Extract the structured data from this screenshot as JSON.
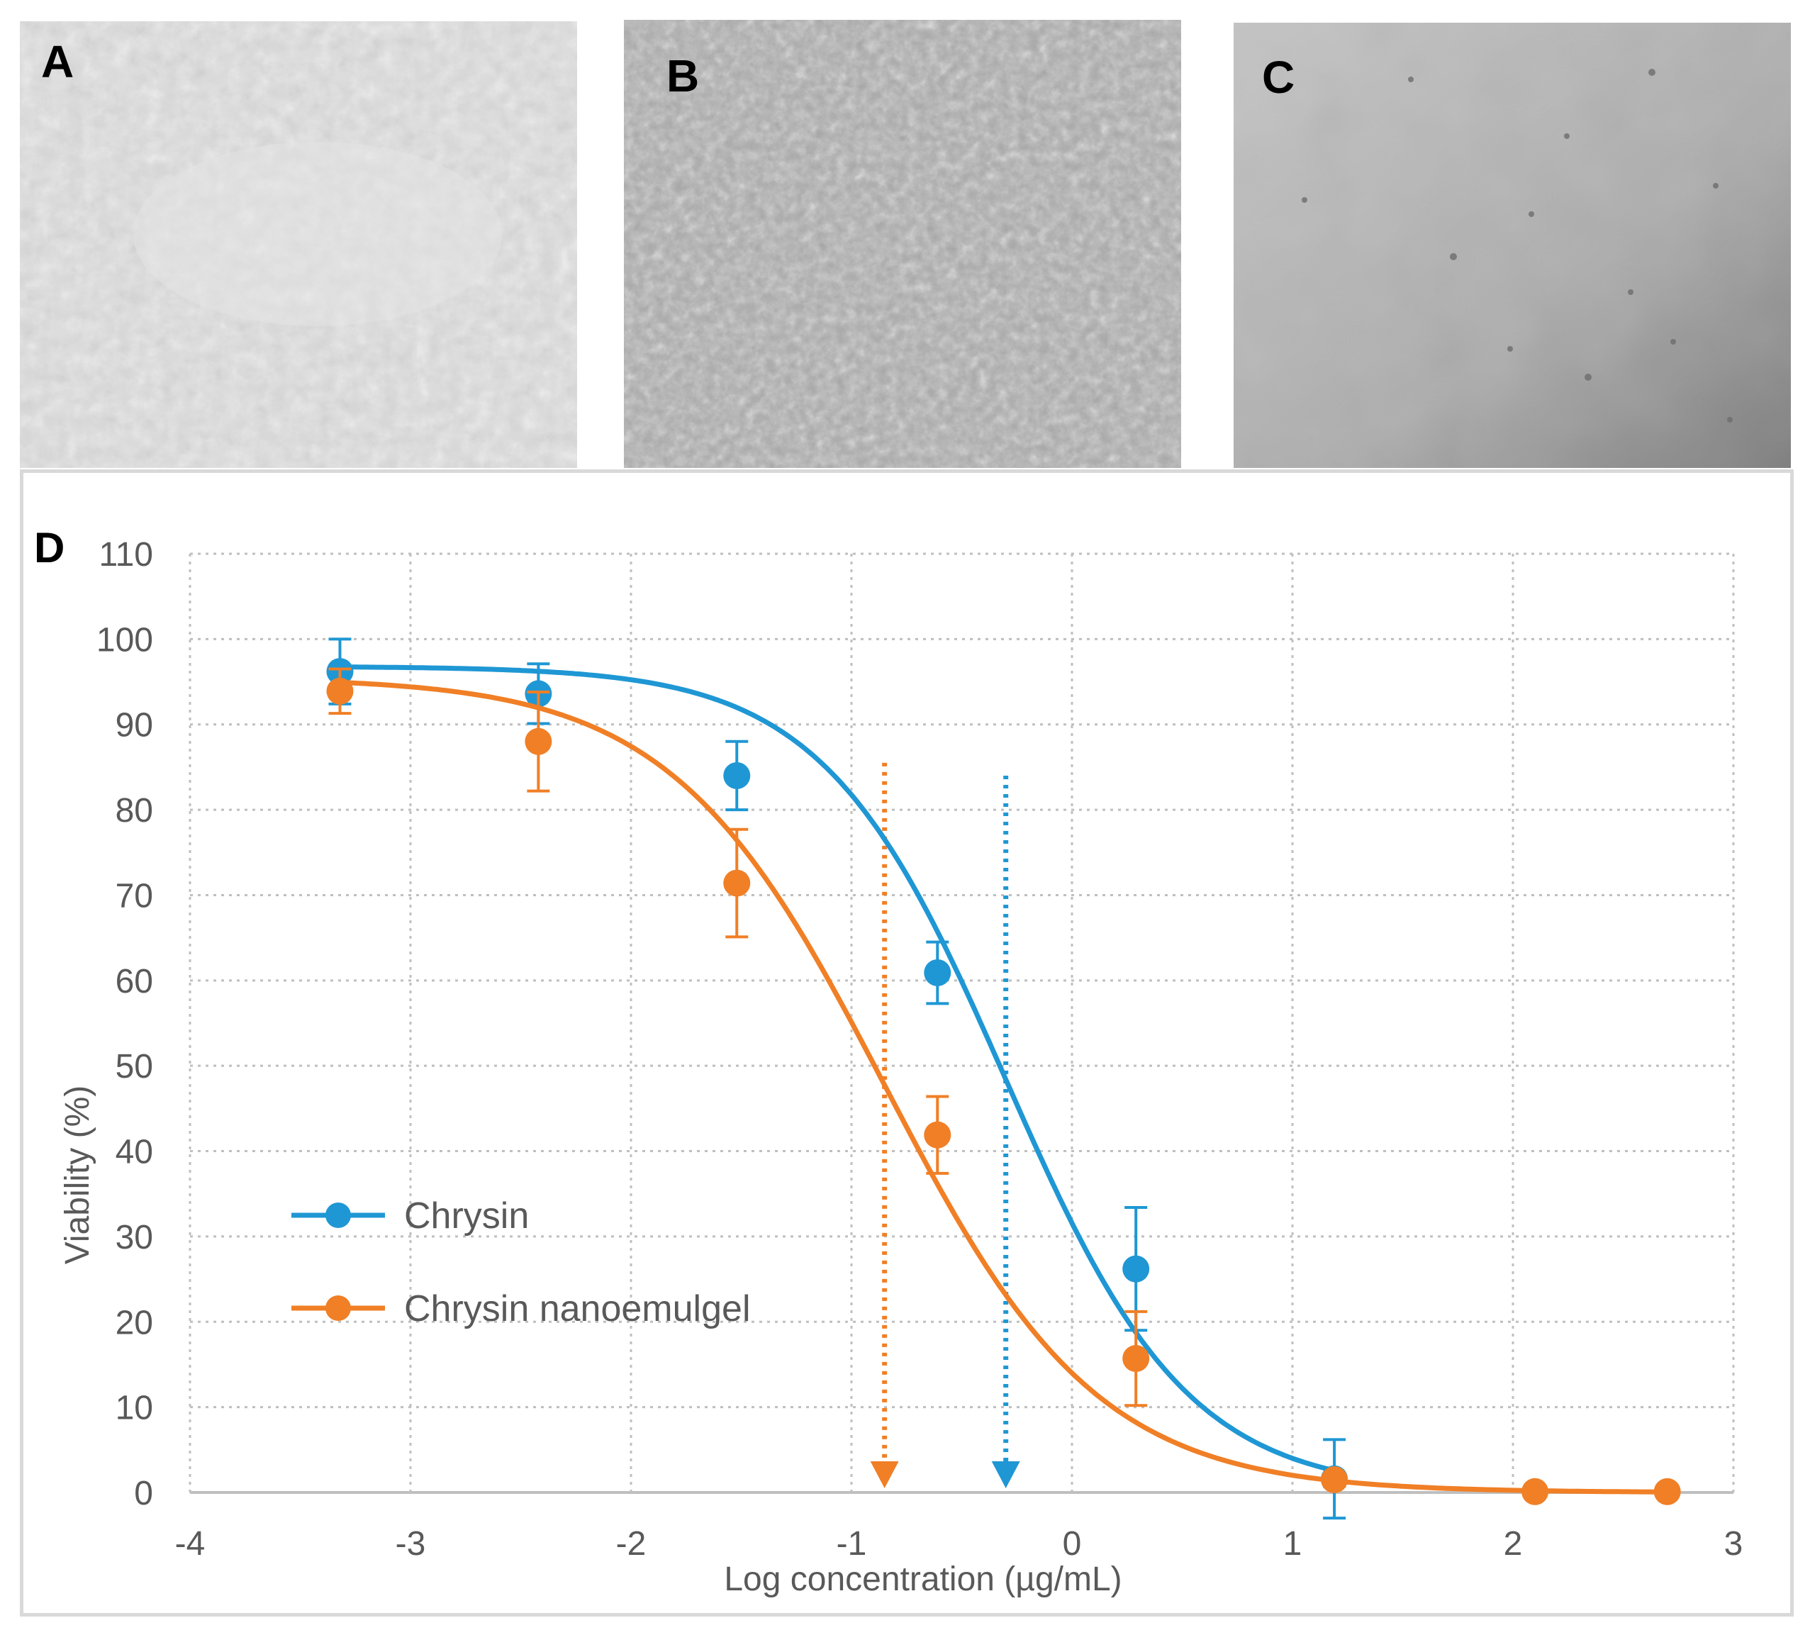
{
  "panels": [
    {
      "label": "A",
      "content": "micrograph"
    },
    {
      "label": "B",
      "content": "micrograph"
    },
    {
      "label": "C",
      "content": "micrograph"
    }
  ],
  "chart_data": {
    "panel_label": "D",
    "type": "line",
    "xlabel": "Log concentration (µg/mL)",
    "ylabel": "Viability  (%)",
    "xlim": [
      -4,
      3
    ],
    "ylim": [
      0,
      110
    ],
    "xticks": [
      -4,
      -3,
      -2,
      -1,
      0,
      1,
      2,
      3
    ],
    "yticks": [
      0,
      10,
      20,
      30,
      40,
      50,
      60,
      70,
      80,
      90,
      100,
      110
    ],
    "grid": true,
    "legend_position": "lower-left",
    "series": [
      {
        "name": "Chrysin",
        "color": "#1f97d4",
        "x": [
          -3.32,
          -2.42,
          -1.52,
          -0.61,
          0.29,
          1.19
        ],
        "y": [
          96.2,
          93.6,
          84.0,
          60.9,
          26.2,
          1.6
        ],
        "err": [
          3.8,
          3.5,
          4.0,
          3.6,
          7.2,
          4.6
        ],
        "curve": {
          "top": 96.8,
          "bottom": 0,
          "x50": -0.3,
          "hill": 1.05
        },
        "ic50_log": -0.3
      },
      {
        "name": "Chrysin nanoemulgel",
        "color": "#f07f26",
        "x": [
          -3.32,
          -2.42,
          -1.52,
          -0.61,
          0.29,
          1.19,
          2.1,
          2.7
        ],
        "y": [
          93.9,
          88.0,
          71.4,
          41.9,
          15.7,
          1.5,
          0.1,
          0.1
        ],
        "err": [
          2.6,
          5.8,
          6.3,
          4.5,
          5.5,
          0.8,
          0.0,
          0.0
        ],
        "curve": {
          "top": 95.5,
          "bottom": 0,
          "x50": -0.85,
          "hill": 0.9
        },
        "ic50_log": -0.85
      }
    ]
  }
}
